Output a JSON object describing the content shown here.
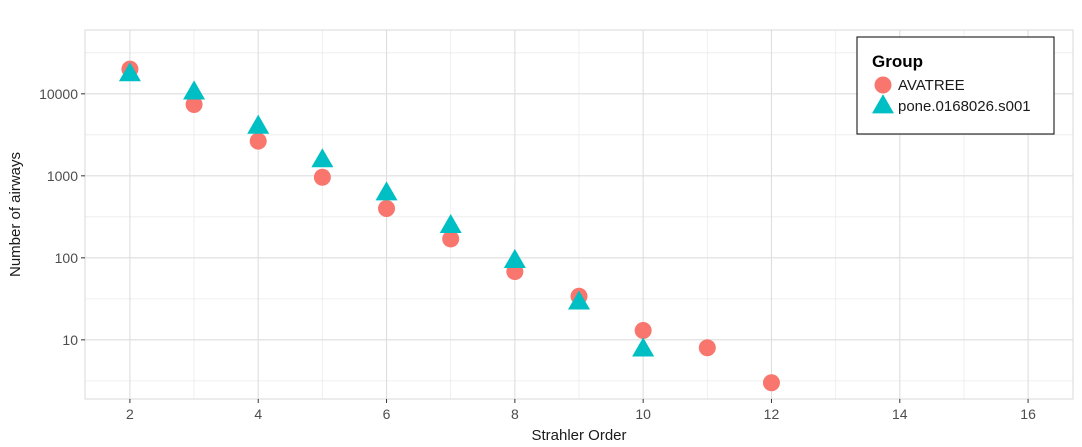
{
  "chart_data": {
    "type": "scatter",
    "xlabel": "Strahler Order",
    "ylabel": "Number of airways",
    "x_log": false,
    "y_log": true,
    "xlim": [
      1.3,
      16.7
    ],
    "ylim": [
      1.9,
      60000
    ],
    "x_ticks": [
      2,
      4,
      6,
      8,
      10,
      12,
      14,
      16
    ],
    "x_tick_labels": [
      "2",
      "4",
      "6",
      "8",
      "10",
      "12",
      "14",
      "16"
    ],
    "y_ticks": [
      10,
      100,
      1000,
      10000
    ],
    "y_tick_labels": [
      "10",
      "100",
      "1000",
      "10000"
    ],
    "grid": true,
    "legend": {
      "title": "Group",
      "position": "top-right",
      "entries": [
        "AVATREE",
        "pone.0168026.s001"
      ]
    },
    "series": [
      {
        "name": "AVATREE",
        "marker": "circle",
        "color": "#F8766D",
        "x": [
          2,
          3,
          4,
          5,
          6,
          7,
          8,
          9,
          10,
          11,
          12
        ],
        "y": [
          20000,
          7400,
          2650,
          960,
          400,
          170,
          68,
          34,
          13,
          8,
          3
        ]
      },
      {
        "name": "pone.0168026.s001",
        "marker": "triangle",
        "color": "#00BFC4",
        "x": [
          2,
          3,
          4,
          5,
          6,
          7,
          8,
          9,
          10
        ],
        "y": [
          17000,
          10200,
          3900,
          1520,
          600,
          240,
          90,
          28,
          7.5
        ]
      }
    ]
  }
}
